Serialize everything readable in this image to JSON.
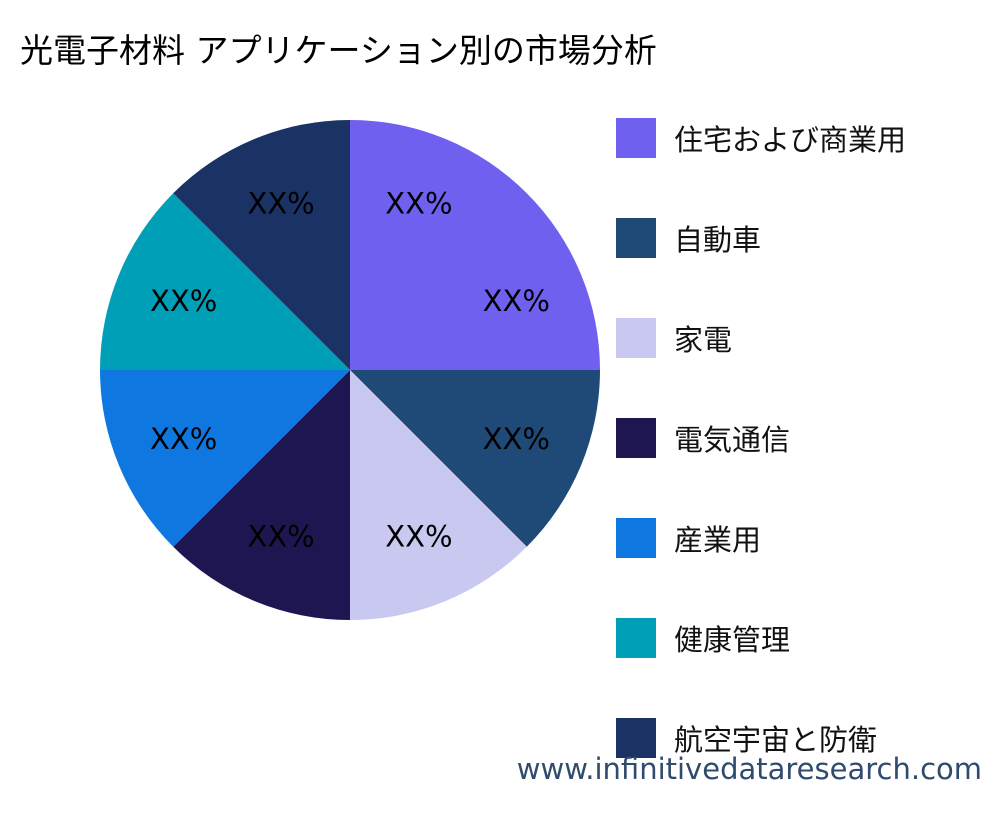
{
  "page_title": "光電子材料 アプリケーション別の市場分析",
  "watermark": "www.infinitivedataresearch.com",
  "chart_data": {
    "type": "pie",
    "title": "光電子材料 アプリケーション別の市場分析",
    "start_angle_deg": 90,
    "direction": "clockwise",
    "legend_position": "right",
    "slices": [
      {
        "name": "住宅および商業用",
        "value": 25,
        "label": "XX%",
        "color": "#7060f0"
      },
      {
        "name": "自動車",
        "value": 12.5,
        "label": "XX%",
        "color": "#1f4a78"
      },
      {
        "name": "家電",
        "value": 12.5,
        "label": "XX%",
        "color": "#c8c8f0"
      },
      {
        "name": "電気通信",
        "value": 12.5,
        "label": "XX%",
        "color": "#1e1650"
      },
      {
        "name": "産業用",
        "value": 12.5,
        "label": "XX%",
        "color": "#0e78e0"
      },
      {
        "name": "健康管理",
        "value": 12.5,
        "label": "XX%",
        "color": "#009fb8"
      },
      {
        "name": "航空宇宙と防衛",
        "value": 12.5,
        "label": "XX%",
        "color": "#1b3264"
      }
    ]
  }
}
